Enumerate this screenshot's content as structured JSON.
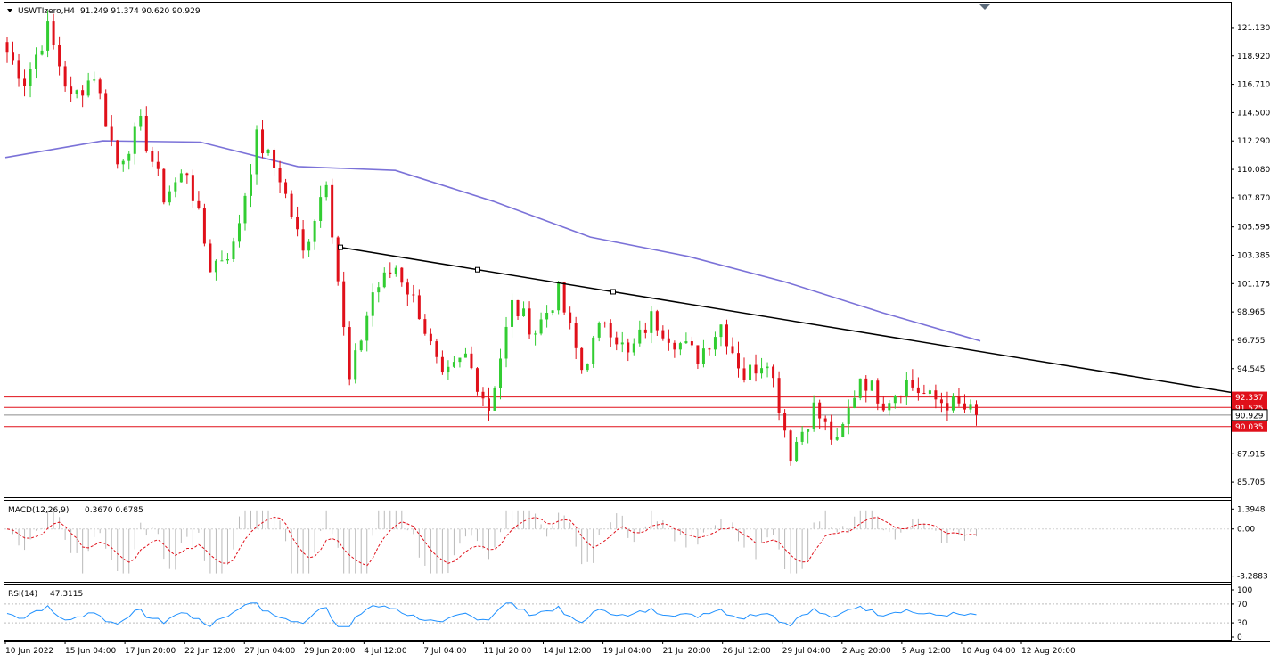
{
  "header": {
    "symbol_label": "USWTIzero,H4",
    "ohlc": "91.249 91.374 90.620 90.929",
    "macd_label": "MACD(12,26,9)",
    "macd_values": "0.3670 0.6785",
    "rsi_label": "RSI(14)",
    "rsi_value": "47.3115"
  },
  "colors": {
    "bull": "#32cd32",
    "bear": "#e0101a",
    "ma": "#7b72d8",
    "trendline": "#000000",
    "level": "#e0101a",
    "current": "#8c8c8c",
    "macd_hist": "#b9b9b9",
    "macd_signal": "#e0101a",
    "rsi": "#1e90ff",
    "frame": "#000000"
  },
  "chart_data": [
    {
      "type": "candlestick",
      "title": "USWTIzero,H4",
      "ylim": [
        85.705,
        122.2
      ],
      "y_ticks": [
        "121.130",
        "118.920",
        "116.710",
        "114.500",
        "112.290",
        "110.080",
        "107.870",
        "105.595",
        "103.385",
        "101.175",
        "98.965",
        "96.755",
        "94.545",
        "92.337",
        "91.525",
        "90.929",
        "90.035",
        "87.915",
        "85.705"
      ],
      "x_ticks": [
        "10 Jun 2022",
        "15 Jun 04:00",
        "17 Jun 20:00",
        "22 Jun 12:00",
        "27 Jun 04:00",
        "29 Jun 20:00",
        "4 Jul 12:00",
        "7 Jul 04:00",
        "11 Jul 20:00",
        "14 Jul 12:00",
        "19 Jul 04:00",
        "21 Jul 20:00",
        "26 Jul 12:00",
        "29 Jul 04:00",
        "2 Aug 20:00",
        "5 Aug 12:00",
        "10 Aug 04:00",
        "12 Aug 20:00"
      ],
      "levels": [
        92.337,
        91.525,
        90.035
      ],
      "level_labels": [
        "92.337",
        "91.525",
        "90.035"
      ],
      "current_price": 90.929,
      "current_label": "90.929",
      "path": [
        120.0,
        117.0,
        121.0,
        115.5,
        117.5,
        110.5,
        113.5,
        108.0,
        110.0,
        102.5,
        104.0,
        112.5,
        109.5,
        103.5,
        109.5,
        93.5,
        100.5,
        102.5,
        99.0,
        93.5,
        95.5,
        91.5,
        99.5,
        97.5,
        100.5,
        94.5,
        98.5,
        95.5,
        98.5,
        96.8,
        95.5,
        98.0,
        94.0,
        95.5,
        88.0,
        91.5,
        88.5,
        94.0,
        92.0,
        93.5,
        92.2,
        91.8,
        90.929
      ],
      "moving_average_path": [
        111.0,
        112.3,
        112.2,
        110.3,
        110.0,
        107.6,
        104.8,
        103.3,
        101.3,
        98.9,
        96.7
      ]
    },
    {
      "type": "line",
      "title": "MACD(12,26,9)",
      "ylim": [
        -3.2883,
        1.3948
      ],
      "y_ticks": [
        "1.3948",
        "0.00",
        "-3.2883"
      ],
      "macd": 0.367,
      "signal": 0.6785
    },
    {
      "type": "line",
      "title": "RSI(14)",
      "ylim": [
        0,
        100
      ],
      "y_ticks": [
        "100",
        "70",
        "30",
        "0"
      ],
      "value": 47.3115,
      "levels": [
        70,
        30
      ]
    }
  ]
}
